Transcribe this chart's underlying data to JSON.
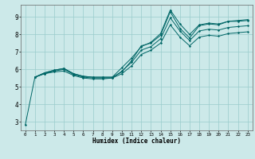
{
  "xlabel": "Humidex (Indice chaleur)",
  "xlim": [
    -0.5,
    23.5
  ],
  "ylim": [
    2.5,
    9.7
  ],
  "yticks": [
    3,
    4,
    5,
    6,
    7,
    8,
    9
  ],
  "xticks": [
    0,
    1,
    2,
    3,
    4,
    5,
    6,
    7,
    8,
    9,
    10,
    11,
    12,
    13,
    14,
    15,
    16,
    17,
    18,
    19,
    20,
    21,
    22,
    23
  ],
  "bg_color": "#cce9e9",
  "grid_color": "#99cccc",
  "line_color": "#006666",
  "lines": [
    {
      "x": [
        0,
        1,
        2,
        3,
        4,
        5,
        6,
        7,
        8,
        9,
        10,
        11,
        12,
        13,
        14,
        15,
        16,
        17,
        18,
        19,
        20,
        21,
        22,
        23
      ],
      "y": [
        2.8,
        5.55,
        5.8,
        5.95,
        6.05,
        5.75,
        5.6,
        5.55,
        5.55,
        5.55,
        5.85,
        6.5,
        7.35,
        7.5,
        7.95,
        9.3,
        8.35,
        7.8,
        8.5,
        8.6,
        8.55,
        8.75,
        8.75,
        8.8
      ]
    },
    {
      "x": [
        1,
        2,
        3,
        4,
        5,
        6,
        7,
        8,
        9,
        10,
        11,
        12,
        13,
        14,
        15,
        16,
        17,
        18,
        19,
        20,
        21,
        22,
        23
      ],
      "y": [
        5.55,
        5.8,
        5.95,
        6.05,
        5.75,
        5.6,
        5.55,
        5.55,
        5.55,
        6.1,
        6.65,
        7.3,
        7.55,
        8.05,
        9.4,
        8.6,
        8.0,
        8.55,
        8.65,
        8.6,
        8.75,
        8.8,
        8.85
      ]
    },
    {
      "x": [
        1,
        2,
        3,
        4,
        5,
        6,
        7,
        8,
        9,
        10,
        11,
        12,
        13,
        14,
        15,
        16,
        17,
        18,
        19,
        20,
        21,
        22,
        23
      ],
      "y": [
        5.55,
        5.75,
        5.9,
        6.0,
        5.7,
        5.55,
        5.5,
        5.5,
        5.5,
        5.9,
        6.4,
        7.1,
        7.3,
        7.75,
        8.95,
        8.2,
        7.65,
        8.2,
        8.3,
        8.25,
        8.4,
        8.45,
        8.5
      ]
    },
    {
      "x": [
        1,
        2,
        3,
        4,
        5,
        6,
        7,
        8,
        9,
        10,
        11,
        12,
        13,
        14,
        15,
        16,
        17,
        18,
        19,
        20,
        21,
        22,
        23
      ],
      "y": [
        5.55,
        5.75,
        5.85,
        5.9,
        5.65,
        5.5,
        5.45,
        5.45,
        5.5,
        5.75,
        6.2,
        6.85,
        7.1,
        7.5,
        8.55,
        7.85,
        7.35,
        7.85,
        7.95,
        7.9,
        8.05,
        8.1,
        8.15
      ]
    }
  ]
}
